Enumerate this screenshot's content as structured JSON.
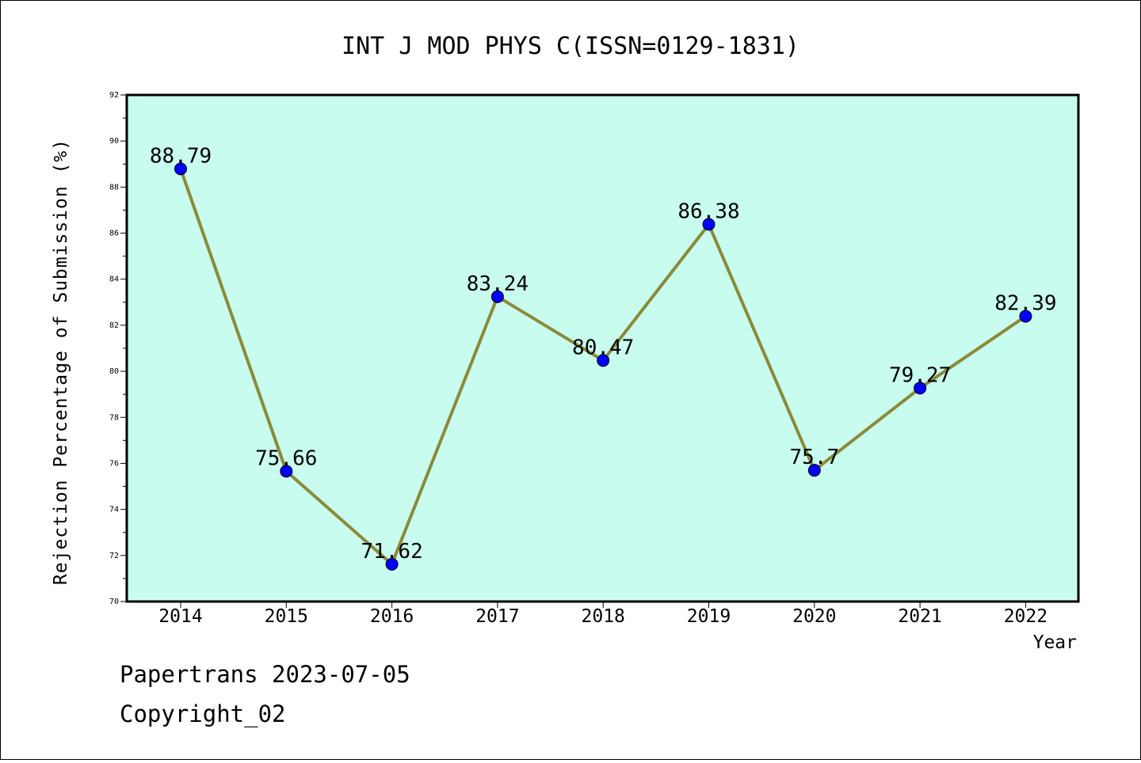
{
  "chart_data": {
    "type": "line",
    "title": "INT J MOD PHYS C(ISSN=0129-1831)",
    "xlabel": "Year",
    "ylabel": "Rejection Percentage of Submission (%)",
    "categories": [
      "2014",
      "2015",
      "2016",
      "2017",
      "2018",
      "2019",
      "2020",
      "2021",
      "2022"
    ],
    "values": [
      88.79,
      75.66,
      71.62,
      83.24,
      80.47,
      86.38,
      75.7,
      79.27,
      82.39
    ],
    "data_labels": [
      "88.79",
      "75.66",
      "71.62",
      "83.24",
      "80.47",
      "86.38",
      "75.7",
      "79.27",
      "82.39"
    ],
    "ylim": [
      70,
      92
    ],
    "yticks": [
      70,
      72,
      74,
      76,
      78,
      80,
      82,
      84,
      86,
      88,
      90,
      92
    ],
    "grid": false,
    "legend": "none",
    "colors": {
      "plot_background": "#c8fcee",
      "line": "#8b8a3a",
      "marker": "#0000ff",
      "axis": "#000000"
    }
  },
  "footer": {
    "line1": "Papertrans 2023-07-05",
    "line2": "Copyright_02"
  }
}
